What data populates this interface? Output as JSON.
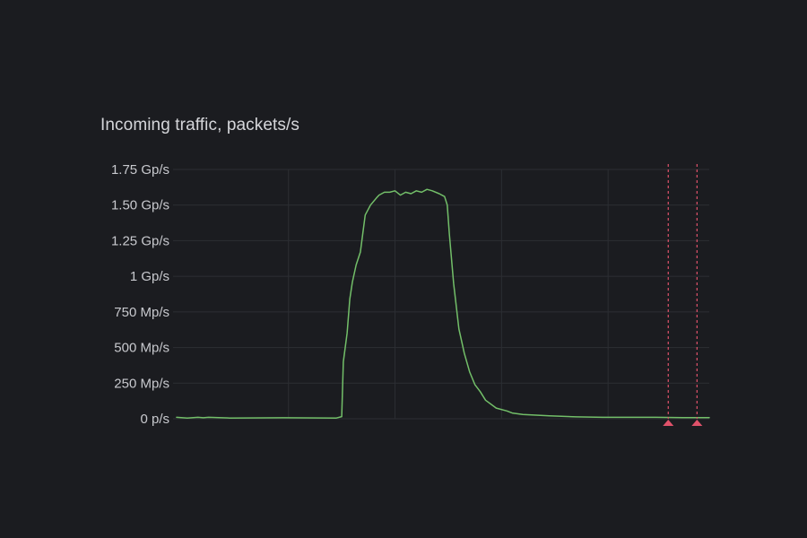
{
  "panel": {
    "title": "Incoming traffic, packets/s"
  },
  "colors": {
    "background": "#1b1c20",
    "grid": "#2c2e33",
    "series": "#73bf69",
    "annotation": "#e0526a",
    "text": "#c8c9ce"
  },
  "chart_data": {
    "type": "line",
    "title": "Incoming traffic, packets/s",
    "xlabel": "",
    "ylabel": "",
    "ylim": [
      0,
      1.75
    ],
    "y_unit": "Gp/s",
    "y_ticks": [
      {
        "value": 0,
        "label": "0 p/s"
      },
      {
        "value": 0.25,
        "label": "250 Mp/s"
      },
      {
        "value": 0.5,
        "label": "500 Mp/s"
      },
      {
        "value": 0.75,
        "label": "750 Mp/s"
      },
      {
        "value": 1.0,
        "label": "1 Gp/s"
      },
      {
        "value": 1.25,
        "label": "1.25 Gp/s"
      },
      {
        "value": 1.5,
        "label": "1.50 Gp/s"
      },
      {
        "value": 1.75,
        "label": "1.75 Gp/s"
      }
    ],
    "x_range": [
      0,
      100
    ],
    "x_gridlines": [
      21,
      41,
      61,
      81
    ],
    "grid": true,
    "legend": "none",
    "series": [
      {
        "x": [
          0,
          2,
          4,
          5,
          6,
          10,
          20,
          30,
          31,
          31.3,
          32,
          32.5,
          33,
          33.7,
          34.5,
          35.4,
          36.4,
          37.5,
          38,
          39,
          40,
          41,
          42,
          43,
          44,
          45,
          46,
          47,
          48,
          49.3,
          50.3,
          50.8,
          51.2,
          52,
          53,
          54,
          55,
          56,
          57,
          58,
          60,
          62,
          63,
          65,
          70,
          75,
          80,
          85,
          90,
          95,
          100
        ],
        "y": [
          0.01,
          0.005,
          0.01,
          0.007,
          0.01,
          0.005,
          0.007,
          0.005,
          0.015,
          0.4,
          0.6,
          0.84,
          0.96,
          1.08,
          1.17,
          1.43,
          1.5,
          1.55,
          1.57,
          1.59,
          1.59,
          1.6,
          1.57,
          1.59,
          1.58,
          1.6,
          1.59,
          1.61,
          1.6,
          1.58,
          1.56,
          1.5,
          1.3,
          0.95,
          0.63,
          0.46,
          0.33,
          0.24,
          0.19,
          0.13,
          0.075,
          0.055,
          0.04,
          0.03,
          0.02,
          0.013,
          0.01,
          0.01,
          0.01,
          0.008,
          0.008
        ]
      }
    ],
    "annotations": [
      {
        "x": 92.3
      },
      {
        "x": 97.7
      }
    ]
  }
}
